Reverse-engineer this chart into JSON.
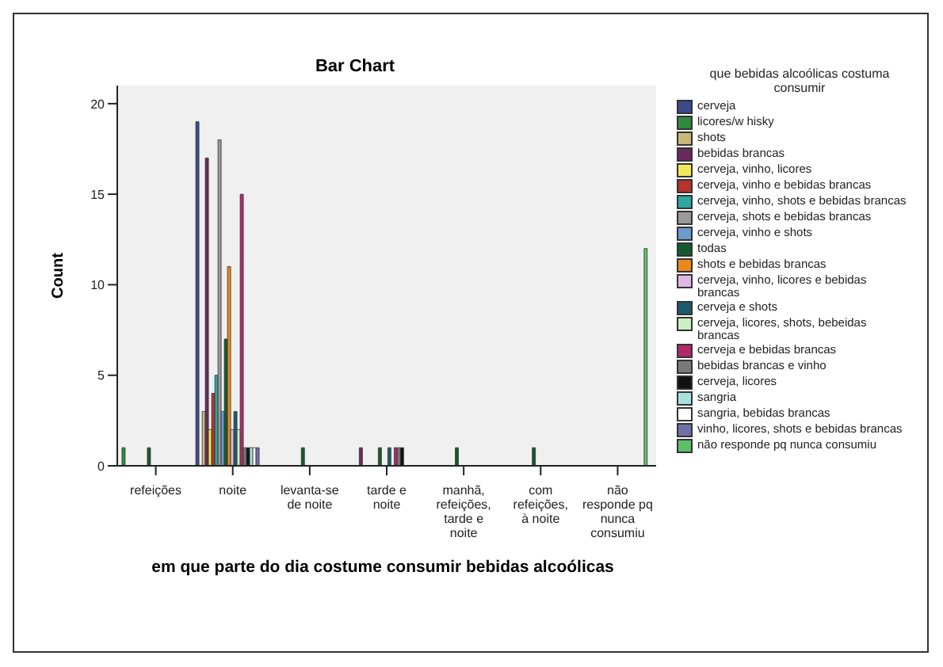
{
  "chart_data": {
    "type": "bar",
    "title": "Bar Chart",
    "xlabel": "em que parte do dia costume consumir bebidas alcoólicas",
    "ylabel": "Count",
    "legend_title": "que bebidas alcoólicas costuma consumir",
    "categories": [
      "refeições",
      "noite",
      "levanta-se de noite",
      "tarde e noite",
      "manhã, refeições, tarde e noite",
      "com refeições, à noite",
      "não responde pq nunca consumiu"
    ],
    "series": [
      {
        "name": "cerveja",
        "color": "#3a4a8c",
        "values": [
          null,
          19,
          null,
          null,
          null,
          null,
          null
        ]
      },
      {
        "name": "licores/w hisky",
        "color": "#2e8b3e",
        "values": [
          1,
          null,
          null,
          null,
          null,
          null,
          null
        ]
      },
      {
        "name": "shots",
        "color": "#c8b87a",
        "values": [
          null,
          3,
          null,
          null,
          null,
          null,
          null
        ]
      },
      {
        "name": "bebidas brancas",
        "color": "#6a2a5e",
        "values": [
          null,
          17,
          null,
          1,
          null,
          null,
          null
        ]
      },
      {
        "name": "cerveja, vinho, licores",
        "color": "#f2e85a",
        "values": [
          null,
          2,
          null,
          null,
          null,
          null,
          null
        ]
      },
      {
        "name": "cerveja, vinho e bebidas brancas",
        "color": "#b8322e",
        "values": [
          null,
          4,
          null,
          null,
          null,
          null,
          null
        ]
      },
      {
        "name": "cerveja, vinho, shots e bebidas brancas",
        "color": "#2fa6a0",
        "values": [
          null,
          5,
          null,
          null,
          null,
          null,
          null
        ]
      },
      {
        "name": "cerveja, shots e bebidas brancas",
        "color": "#9a9a9a",
        "values": [
          null,
          18,
          null,
          null,
          null,
          null,
          null
        ]
      },
      {
        "name": "cerveja, vinho e shots",
        "color": "#6d9bd0",
        "values": [
          null,
          3,
          null,
          null,
          null,
          null,
          null
        ]
      },
      {
        "name": "todas",
        "color": "#145a2e",
        "values": [
          1,
          7,
          1,
          1,
          1,
          1,
          null
        ]
      },
      {
        "name": "shots e bebidas brancas",
        "color": "#e88a1a",
        "values": [
          null,
          11,
          null,
          null,
          null,
          null,
          null
        ]
      },
      {
        "name": "cerveja, vinho, licores e bebidas brancas",
        "color": "#e0b8e8",
        "values": [
          null,
          2,
          null,
          null,
          null,
          null,
          null
        ]
      },
      {
        "name": "cerveja e shots",
        "color": "#1e5a6e",
        "values": [
          null,
          3,
          null,
          1,
          null,
          null,
          null
        ]
      },
      {
        "name": "cerveja, licores, shots, bebeidas brancas",
        "color": "#c8f0c0",
        "values": [
          null,
          2,
          null,
          null,
          null,
          null,
          null
        ]
      },
      {
        "name": "cerveja e bebidas brancas",
        "color": "#b02a6a",
        "values": [
          null,
          15,
          null,
          1,
          null,
          null,
          null
        ]
      },
      {
        "name": "bebidas brancas e vinho",
        "color": "#7a7a7a",
        "values": [
          null,
          1,
          null,
          1,
          null,
          null,
          null
        ]
      },
      {
        "name": "cerveja, licores",
        "color": "#111111",
        "values": [
          null,
          1,
          null,
          1,
          null,
          null,
          null
        ]
      },
      {
        "name": "sangria",
        "color": "#a8e0e0",
        "values": [
          null,
          1,
          null,
          null,
          null,
          null,
          null
        ]
      },
      {
        "name": "sangria, bebidas brancas",
        "color": "#ffffff",
        "values": [
          null,
          1,
          null,
          null,
          null,
          null,
          null
        ]
      },
      {
        "name": "vinho, licores, shots e bebidas brancas",
        "color": "#7070a8",
        "values": [
          null,
          1,
          null,
          null,
          null,
          null,
          null
        ]
      },
      {
        "name": "não responde pq nunca consumiu",
        "color": "#5cc06a",
        "values": [
          null,
          null,
          null,
          null,
          null,
          null,
          12
        ]
      }
    ],
    "ylim": [
      0,
      21
    ],
    "yticks": [
      0,
      5,
      10,
      15,
      20
    ],
    "grid": false,
    "legend": "right"
  }
}
